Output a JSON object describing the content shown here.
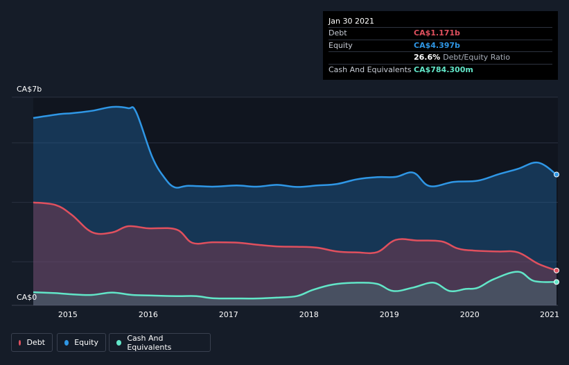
{
  "tooltip": {
    "date": "Jan 30 2021",
    "debt_label": "Debt",
    "debt_value": "CA$1.171b",
    "equity_label": "Equity",
    "equity_value": "CA$4.397b",
    "ratio_value": "26.6%",
    "ratio_label": "Debt/Equity Ratio",
    "cash_label": "Cash And Equivalents",
    "cash_value": "CA$784.300m"
  },
  "legend": {
    "debt": "Debt",
    "equity": "Equity",
    "cash": "Cash And Equivalents"
  },
  "colors": {
    "debt": "#e0505e",
    "equity": "#2f97e6",
    "cash": "#62e6c8",
    "background": "#151c28"
  },
  "chart_data": {
    "type": "area",
    "y_tick_labels": [
      "CA$7b",
      "CA$0"
    ],
    "ylim": [
      0,
      7
    ],
    "xlim": [
      2014.57,
      2021.08
    ],
    "x_ticks": [
      2015,
      2016,
      2017,
      2018,
      2019,
      2020,
      2021
    ],
    "x_tick_labels": [
      "2015",
      "2016",
      "2017",
      "2018",
      "2019",
      "2020",
      "2021"
    ],
    "grid": true,
    "series": [
      {
        "name": "Equity",
        "color": "#2f97e6",
        "x": [
          2014.57,
          2014.9,
          2015.05,
          2015.3,
          2015.55,
          2015.75,
          2015.85,
          2016.05,
          2016.2,
          2016.33,
          2016.5,
          2016.8,
          2017.1,
          2017.35,
          2017.6,
          2017.85,
          2018.1,
          2018.35,
          2018.6,
          2018.85,
          2019.08,
          2019.3,
          2019.5,
          2019.8,
          2020.1,
          2020.35,
          2020.6,
          2020.85,
          2021.08
        ],
        "values": [
          6.3,
          6.43,
          6.46,
          6.54,
          6.67,
          6.63,
          6.5,
          4.99,
          4.3,
          3.97,
          4.02,
          3.99,
          4.03,
          3.99,
          4.05,
          3.98,
          4.03,
          4.08,
          4.24,
          4.31,
          4.32,
          4.46,
          4.01,
          4.15,
          4.19,
          4.4,
          4.59,
          4.8,
          4.397
        ]
      },
      {
        "name": "Debt",
        "color": "#e0505e",
        "x": [
          2014.57,
          2014.85,
          2015.05,
          2015.3,
          2015.55,
          2015.75,
          2016.0,
          2016.35,
          2016.55,
          2016.8,
          2017.1,
          2017.35,
          2017.6,
          2017.85,
          2018.1,
          2018.35,
          2018.6,
          2018.85,
          2019.08,
          2019.35,
          2019.65,
          2019.85,
          2020.05,
          2020.35,
          2020.6,
          2020.85,
          2021.08
        ],
        "values": [
          3.46,
          3.37,
          3.04,
          2.46,
          2.45,
          2.66,
          2.59,
          2.55,
          2.1,
          2.12,
          2.11,
          2.04,
          1.98,
          1.97,
          1.94,
          1.81,
          1.78,
          1.79,
          2.2,
          2.18,
          2.15,
          1.91,
          1.84,
          1.81,
          1.78,
          1.4,
          1.171
        ]
      },
      {
        "name": "Cash And Equivalents",
        "color": "#62e6c8",
        "x": [
          2014.57,
          2014.85,
          2015.05,
          2015.3,
          2015.55,
          2015.8,
          2016.05,
          2016.35,
          2016.6,
          2016.8,
          2017.1,
          2017.35,
          2017.6,
          2017.85,
          2018.05,
          2018.3,
          2018.6,
          2018.85,
          2019.05,
          2019.3,
          2019.55,
          2019.75,
          2019.95,
          2020.1,
          2020.3,
          2020.6,
          2020.8,
          2021.08
        ],
        "values": [
          0.44,
          0.41,
          0.37,
          0.35,
          0.43,
          0.35,
          0.33,
          0.31,
          0.31,
          0.24,
          0.23,
          0.23,
          0.26,
          0.31,
          0.52,
          0.7,
          0.76,
          0.72,
          0.48,
          0.6,
          0.76,
          0.48,
          0.55,
          0.59,
          0.88,
          1.13,
          0.82,
          0.7843
        ]
      }
    ]
  }
}
